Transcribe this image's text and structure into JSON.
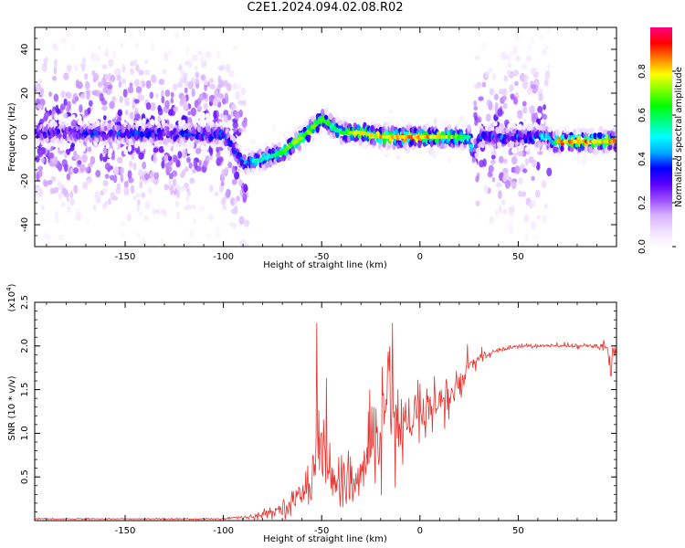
{
  "title": "C2E1.2024.094.02.08.R02",
  "colors": {
    "snr_line": "#e8322d",
    "axis": "#000000",
    "colorbar": [
      "#ffffff",
      "#f0e0ff",
      "#d8b0ff",
      "#9b4dff",
      "#5a00ff",
      "#0000ff",
      "#00aaff",
      "#00ffff",
      "#00ff80",
      "#00ff00",
      "#80ff00",
      "#ffff00",
      "#ff8000",
      "#ff0000",
      "#ff0080"
    ]
  },
  "chart_data": [
    {
      "type": "heatmap",
      "xlabel": "Height of straight line (km)",
      "ylabel": "Frequency (Hz)",
      "xlim": [
        -196,
        100
      ],
      "ylim": [
        -50,
        50
      ],
      "xticks": [
        -150,
        -100,
        -50,
        0,
        50
      ],
      "xtick_labels": [
        "-150",
        "-100",
        "-50",
        "0",
        "50"
      ],
      "yticks": [
        -40,
        -20,
        0,
        20,
        40
      ],
      "ytick_labels": [
        "-40",
        "-20",
        "0",
        "20",
        "40"
      ],
      "colorbar": {
        "label": "Normalized spectral amplitude",
        "range": [
          0,
          1
        ],
        "ticks": [
          0.0,
          0.2,
          0.4,
          0.6,
          0.8
        ],
        "tick_labels": [
          "0.0",
          "0.2",
          "0.4",
          "0.6",
          "0.8"
        ]
      },
      "ridge": {
        "description_points_x": [
          -196,
          -100,
          -90,
          -80,
          -70,
          -60,
          -50,
          -45,
          -40,
          -30,
          -20,
          -10,
          0,
          10,
          20,
          25,
          27,
          30,
          50,
          65,
          68,
          70,
          80,
          100
        ],
        "description_points_y": [
          2,
          1,
          -12,
          -10,
          -7,
          0,
          8,
          5,
          2,
          2,
          0,
          0,
          0,
          0,
          0,
          0,
          -8,
          0,
          0,
          0,
          -3,
          -2,
          -2,
          -2
        ],
        "peak_amplitude": [
          0.35,
          0.4,
          0.45,
          0.55,
          0.65,
          0.75,
          0.7,
          0.6,
          0.65,
          0.8,
          0.85,
          0.9,
          0.9,
          0.8,
          0.7,
          0.6,
          0.4,
          0.4,
          0.4,
          0.5,
          0.5,
          0.9,
          0.9,
          0.85
        ]
      }
    },
    {
      "type": "line",
      "xlabel": "Height of straight line (km)",
      "ylabel": "SNR (10 * v/v)",
      "y_multiplier": "(x10",
      "y_multiplier_exp": "4",
      "y_multiplier_close": ")",
      "xlim": [
        -196,
        100
      ],
      "ylim": [
        0,
        2.5
      ],
      "xticks": [
        -150,
        -100,
        -50,
        0,
        50
      ],
      "xtick_labels": [
        "-150",
        "-100",
        "-50",
        "0",
        "50"
      ],
      "yticks": [
        0.5,
        1.0,
        1.5,
        2.0,
        2.5
      ],
      "ytick_labels": [
        "0.5",
        "1.0",
        "1.5",
        "2.0",
        "2.5"
      ],
      "series": [
        {
          "x": [
            -196,
            -150,
            -110,
            -100,
            -95,
            -90,
            -85,
            -80,
            -75,
            -70,
            -65,
            -60,
            -55,
            -52,
            -50,
            -48,
            -45,
            -40,
            -35,
            -30,
            -25,
            -20,
            -17,
            -15,
            -12,
            -10,
            -5,
            0,
            5,
            10,
            15,
            20,
            25,
            30,
            35,
            40,
            50,
            60,
            70,
            80,
            90,
            95,
            97,
            100
          ],
          "y": [
            0.02,
            0.02,
            0.02,
            0.02,
            0.04,
            0.03,
            0.05,
            0.07,
            0.1,
            0.15,
            0.2,
            0.3,
            0.55,
            1.1,
            0.7,
            0.9,
            0.4,
            0.5,
            0.35,
            0.5,
            0.7,
            1.1,
            1.6,
            1.5,
            1.0,
            1.1,
            1.05,
            1.25,
            1.2,
            1.35,
            1.4,
            1.55,
            1.75,
            1.85,
            1.9,
            1.95,
            2.0,
            2.0,
            2.0,
            2.0,
            2.0,
            2.0,
            1.9,
            1.95
          ],
          "noise": [
            0.005,
            0.005,
            0.008,
            0.01,
            0.02,
            0.02,
            0.03,
            0.04,
            0.06,
            0.08,
            0.12,
            0.18,
            0.35,
            0.5,
            0.45,
            0.45,
            0.3,
            0.3,
            0.25,
            0.3,
            0.4,
            0.55,
            0.7,
            0.65,
            0.45,
            0.4,
            0.35,
            0.3,
            0.3,
            0.3,
            0.25,
            0.2,
            0.12,
            0.08,
            0.04,
            0.03,
            0.02,
            0.02,
            0.02,
            0.02,
            0.03,
            0.06,
            0.2,
            0.06
          ]
        }
      ]
    }
  ]
}
